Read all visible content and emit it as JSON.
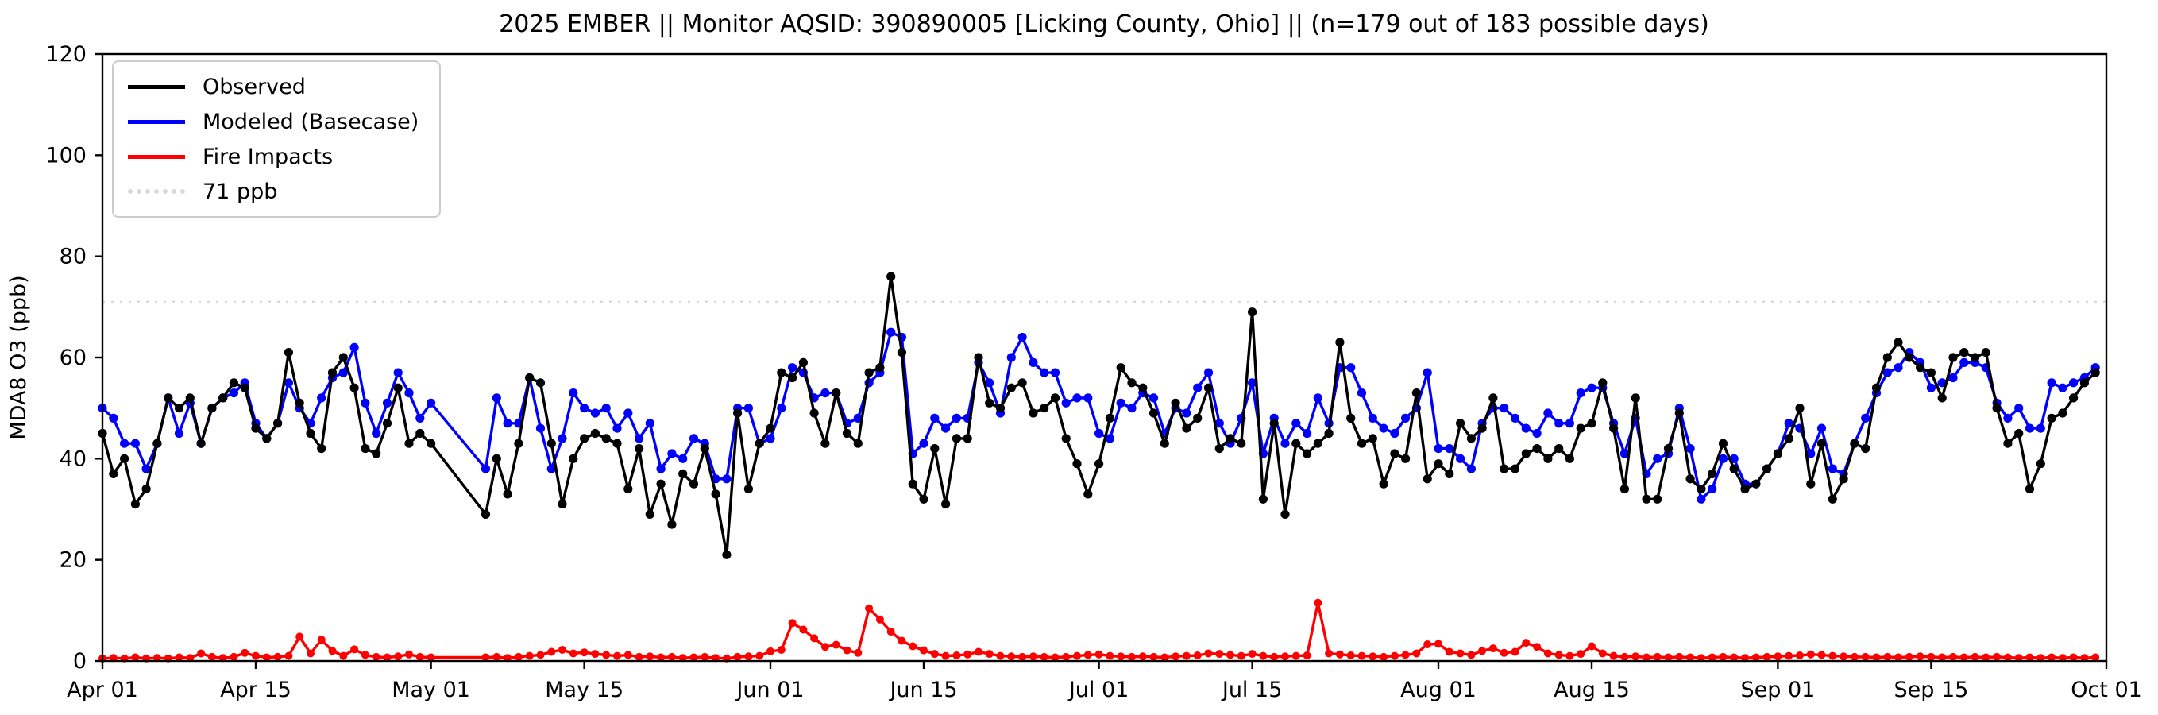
{
  "title": "2025 EMBER || Monitor AQSID: 390890005 [Licking County, Ohio] || (n=179 out of 183 possible days)",
  "ylabel": "MDA8 O3 (ppb)",
  "legend": [
    {
      "label": "Observed",
      "color": "#000000",
      "style": "solid"
    },
    {
      "label": "Modeled (Basecase)",
      "color": "#0000ff",
      "style": "solid"
    },
    {
      "label": "Fire Impacts",
      "color": "#ff0000",
      "style": "solid"
    },
    {
      "label": "71 ppb",
      "color": "#d9d9d9",
      "style": "dotted"
    }
  ],
  "chart_data": {
    "type": "line",
    "title": "2025 EMBER || Monitor AQSID: 390890005 [Licking County, Ohio] || (n=179 out of 183 possible days)",
    "xlabel": "",
    "ylabel": "MDA8 O3 (ppb)",
    "ylim": [
      0,
      120
    ],
    "yticks": [
      0,
      20,
      40,
      60,
      80,
      100,
      120
    ],
    "ytick_labels": [
      "0",
      "20",
      "40",
      "60",
      "80",
      "100",
      "120"
    ],
    "x_days_total": 183,
    "x_start_date": "Apr 01",
    "x_end_date": "Oct 01",
    "xtick_days": [
      0,
      14,
      30,
      44,
      61,
      75,
      91,
      105,
      122,
      136,
      153,
      167,
      183
    ],
    "xtick_labels": [
      "Apr 01",
      "Apr 15",
      "May 01",
      "May 15",
      "Jun 01",
      "Jun 15",
      "Jul 01",
      "Jul 15",
      "Aug 01",
      "Aug 15",
      "Sep 01",
      "Sep 15",
      "Oct 01"
    ],
    "grid": false,
    "legend_position": "upper left",
    "missing_days": [
      "May 02",
      "May 03",
      "May 04",
      "May 05"
    ],
    "threshold": {
      "value": 71,
      "label": "71 ppb",
      "color": "#d9d9d9",
      "style": "dotted"
    },
    "series": [
      {
        "name": "Fire Impacts",
        "color": "#ff0000",
        "marker": "circle",
        "values": [
          0.5,
          0.6,
          0.5,
          0.7,
          0.5,
          0.6,
          0.5,
          0.7,
          0.6,
          1.5,
          0.8,
          0.6,
          0.8,
          1.6,
          1.0,
          0.7,
          0.8,
          1.0,
          4.8,
          1.5,
          4.2,
          2.0,
          1.0,
          2.3,
          1.2,
          0.8,
          0.7,
          0.9,
          1.3,
          0.8,
          0.7,
          null,
          null,
          null,
          null,
          0.7,
          0.8,
          0.6,
          0.8,
          1.0,
          1.2,
          1.8,
          2.2,
          1.5,
          1.7,
          1.4,
          1.2,
          1.0,
          1.2,
          0.8,
          0.9,
          0.7,
          0.8,
          0.6,
          0.7,
          0.8,
          0.6,
          0.5,
          0.8,
          0.9,
          1.0,
          1.9,
          2.2,
          7.5,
          6.2,
          4.5,
          2.8,
          3.2,
          2.1,
          1.6,
          10.4,
          8.2,
          5.8,
          4.0,
          2.9,
          2.1,
          1.4,
          1.0,
          1.1,
          1.3,
          1.8,
          1.4,
          1.0,
          0.9,
          0.8,
          0.9,
          0.8,
          0.7,
          0.8,
          1.0,
          1.2,
          1.3,
          1.0,
          0.9,
          0.8,
          0.9,
          0.8,
          0.7,
          0.9,
          1.0,
          1.1,
          1.5,
          1.4,
          1.2,
          1.0,
          1.4,
          1.0,
          0.8,
          0.9,
          1.0,
          1.1,
          11.5,
          1.5,
          1.3,
          1.1,
          1.0,
          0.9,
          0.8,
          1.0,
          1.2,
          1.5,
          3.3,
          3.4,
          1.8,
          1.5,
          1.2,
          2.0,
          2.5,
          1.6,
          1.8,
          3.6,
          2.8,
          1.5,
          1.2,
          1.0,
          1.4,
          2.9,
          1.5,
          1.0,
          0.8,
          0.9,
          0.7,
          0.8,
          0.7,
          0.8,
          0.7,
          0.6,
          0.7,
          0.8,
          0.7,
          0.6,
          0.7,
          0.8,
          0.9,
          1.0,
          1.1,
          1.3,
          1.2,
          1.0,
          0.9,
          0.8,
          0.8,
          0.7,
          0.8,
          0.7,
          0.8,
          0.9,
          0.8,
          0.7,
          0.8,
          0.7,
          0.8,
          0.7,
          0.8,
          0.7,
          0.6,
          0.7,
          0.6,
          0.7,
          0.6,
          0.7,
          0.6,
          0.7
        ]
      },
      {
        "name": "Modeled (Basecase)",
        "color": "#0000ff",
        "marker": "circle",
        "values": [
          50,
          48,
          43,
          43,
          38,
          43,
          52,
          45,
          51,
          43,
          50,
          52,
          53,
          55,
          47,
          44,
          47,
          55,
          50,
          47,
          52,
          56,
          57,
          62,
          51,
          45,
          51,
          57,
          53,
          48,
          51,
          null,
          null,
          null,
          null,
          38,
          52,
          47,
          47,
          56,
          46,
          38,
          44,
          53,
          50,
          49,
          50,
          46,
          49,
          44,
          47,
          38,
          41,
          40,
          44,
          43,
          36,
          36,
          50,
          50,
          43,
          44,
          50,
          58,
          57,
          52,
          53,
          53,
          47,
          48,
          55,
          57,
          65,
          64,
          41,
          43,
          48,
          46,
          48,
          48,
          59,
          55,
          49,
          60,
          64,
          59,
          57,
          57,
          51,
          52,
          52,
          45,
          44,
          51,
          50,
          53,
          52,
          45,
          50,
          49,
          54,
          57,
          47,
          43,
          48,
          55,
          41,
          48,
          43,
          47,
          45,
          52,
          47,
          58,
          58,
          53,
          48,
          46,
          45,
          48,
          50,
          57,
          42,
          42,
          40,
          38,
          47,
          50,
          50,
          48,
          46,
          45,
          49,
          47,
          47,
          53,
          54,
          54,
          47,
          41,
          48,
          37,
          40,
          41,
          50,
          42,
          32,
          34,
          40,
          40,
          35,
          35,
          38,
          41,
          47,
          46,
          41,
          46,
          38,
          37,
          43,
          48,
          53,
          57,
          58,
          61,
          59,
          54,
          55,
          56,
          59,
          59,
          58,
          51,
          48,
          50,
          46,
          46,
          55,
          54,
          55,
          56,
          58
        ]
      },
      {
        "name": "Observed",
        "color": "#000000",
        "marker": "circle",
        "values": [
          45,
          37,
          40,
          31,
          34,
          43,
          52,
          50,
          52,
          43,
          50,
          52,
          55,
          54,
          46,
          44,
          47,
          61,
          51,
          45,
          42,
          57,
          60,
          54,
          42,
          41,
          47,
          54,
          43,
          45,
          43,
          null,
          null,
          null,
          null,
          29,
          40,
          33,
          43,
          56,
          55,
          43,
          31,
          40,
          44,
          45,
          44,
          43,
          34,
          42,
          29,
          35,
          27,
          37,
          35,
          42,
          33,
          21,
          49,
          34,
          43,
          46,
          57,
          56,
          59,
          49,
          43,
          53,
          45,
          43,
          57,
          58,
          76,
          61,
          35,
          32,
          42,
          31,
          44,
          44,
          60,
          51,
          50,
          54,
          55,
          49,
          50,
          52,
          44,
          39,
          33,
          39,
          48,
          58,
          55,
          54,
          49,
          43,
          51,
          46,
          48,
          54,
          42,
          44,
          43,
          69,
          32,
          47,
          29,
          43,
          41,
          43,
          45,
          63,
          48,
          43,
          44,
          35,
          41,
          40,
          53,
          36,
          39,
          37,
          47,
          44,
          46,
          52,
          38,
          38,
          41,
          42,
          40,
          42,
          40,
          46,
          47,
          55,
          46,
          34,
          52,
          32,
          32,
          42,
          49,
          36,
          34,
          37,
          43,
          38,
          34,
          35,
          38,
          41,
          44,
          50,
          35,
          43,
          32,
          36,
          43,
          42,
          54,
          60,
          63,
          60,
          58,
          57,
          52,
          60,
          61,
          60,
          61,
          50,
          43,
          45,
          34,
          39,
          48,
          49,
          52,
          55,
          57
        ]
      }
    ]
  }
}
